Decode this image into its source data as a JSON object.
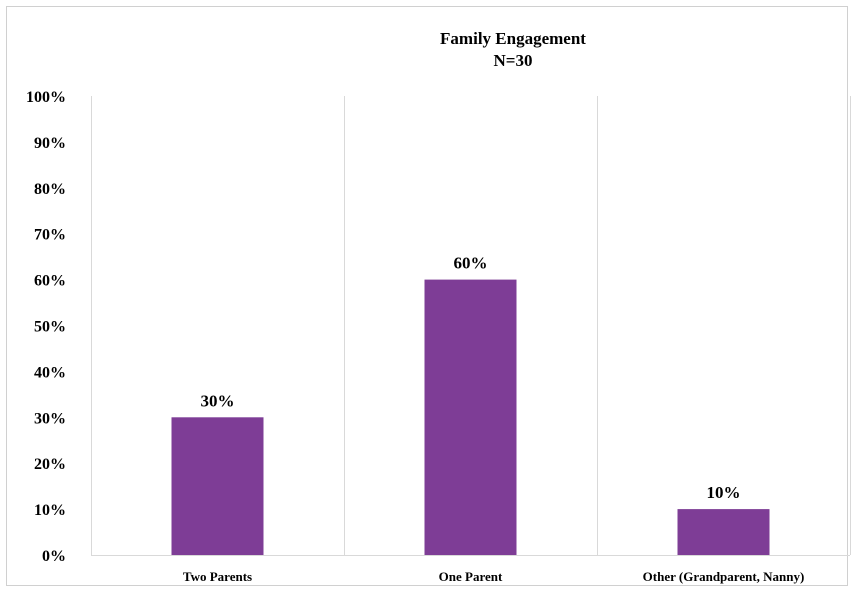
{
  "chart_data": {
    "type": "bar",
    "title": "Family Engagement",
    "subtitle": "N=30",
    "categories": [
      "Two Parents",
      "One Parent",
      "Other (Grandparent, Nanny)"
    ],
    "values": [
      30,
      60,
      10
    ],
    "data_labels": [
      "30%",
      "60%",
      "10%"
    ],
    "unit": "%",
    "ylim": [
      0,
      100
    ],
    "yticks": [
      0,
      10,
      20,
      30,
      40,
      50,
      60,
      70,
      80,
      90,
      100
    ],
    "ytick_labels": [
      "0%",
      "10%",
      "20%",
      "30%",
      "40%",
      "50%",
      "60%",
      "70%",
      "80%",
      "90%",
      "100%"
    ],
    "xlabel": "",
    "ylabel": "",
    "grid": "vertical separators between categories",
    "legend": "none",
    "bar_color": "#7E3D96",
    "gridline_color": "#D9D9D9"
  }
}
